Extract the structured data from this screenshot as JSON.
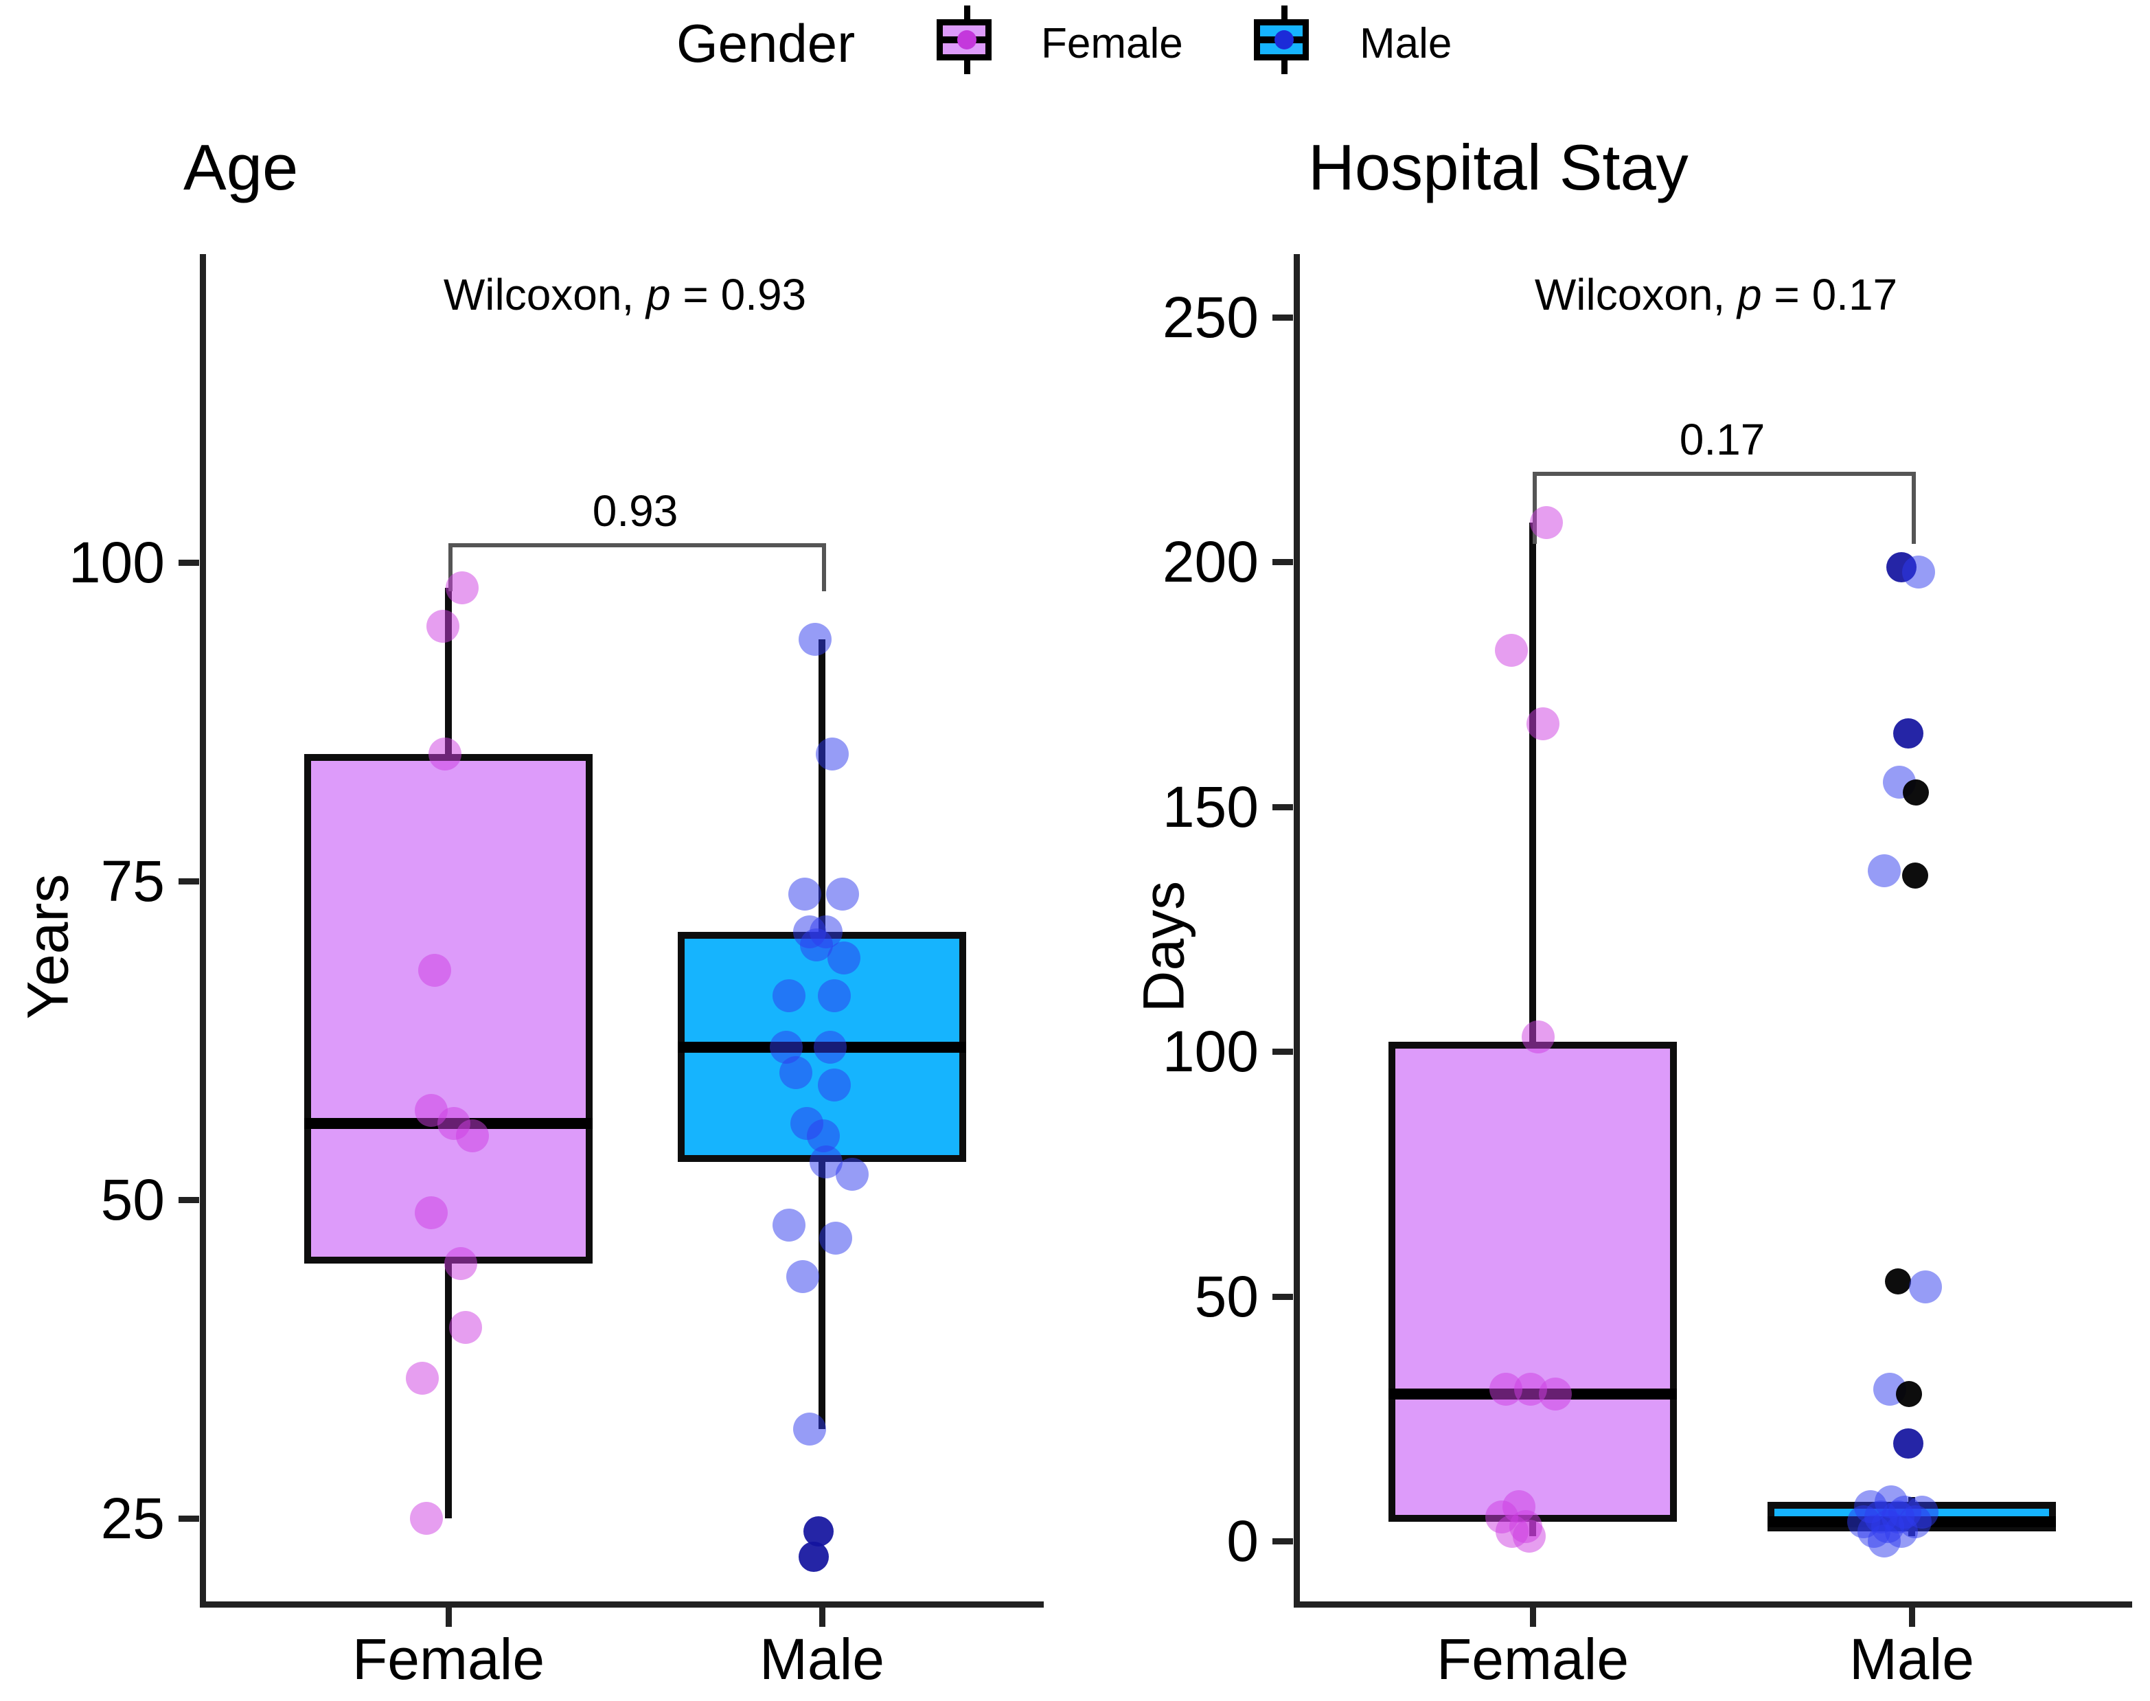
{
  "legend": {
    "title": "Gender",
    "items": [
      {
        "label": "Female",
        "fill": "#DD9BFA",
        "dot": "#C438DC"
      },
      {
        "label": "Male",
        "fill": "#16B4FE",
        "dot": "#1C2BD8"
      }
    ]
  },
  "point_colors": {
    "f": "rgba(206,62,226,0.5)",
    "m": "rgba(45,58,238,0.5)",
    "navy": "rgba(18,18,158,0.92)",
    "k": "rgba(0,0,0,0.95)"
  },
  "chart_data": [
    {
      "type": "boxplot",
      "title": "Age",
      "ylabel": "Years",
      "subtitle": {
        "stat": "Wilcoxon,",
        "p": "p",
        "eq": "= 0.93"
      },
      "categories": [
        "Female",
        "Male"
      ],
      "yticks": [
        100,
        75,
        50,
        25
      ],
      "ylim": [
        18.5,
        124.2
      ],
      "grid": false,
      "legend_position": "top",
      "bracket": {
        "label": "0.93",
        "value": 101.5,
        "drop": 70
      },
      "boxes": [
        {
          "category": "Female",
          "fill": "#DD9BFA",
          "whisker_low": 25,
          "q1": 45,
          "median": 56,
          "q3": 85,
          "whisker_high": 98
        },
        {
          "category": "Male",
          "fill": "#16B4FE",
          "whisker_low": 32,
          "q1": 53,
          "median": 62,
          "q3": 71,
          "whisker_high": 94
        }
      ],
      "points": [
        {
          "cat": 0,
          "v": 98,
          "dx": 20,
          "c": "f"
        },
        {
          "cat": 0,
          "v": 95,
          "dx": -8,
          "c": "f"
        },
        {
          "cat": 0,
          "v": 85,
          "dx": -5,
          "c": "f"
        },
        {
          "cat": 0,
          "v": 68,
          "dx": -20,
          "c": "f"
        },
        {
          "cat": 0,
          "v": 57,
          "dx": -25,
          "c": "f"
        },
        {
          "cat": 0,
          "v": 56,
          "dx": 8,
          "c": "f"
        },
        {
          "cat": 0,
          "v": 55,
          "dx": 35,
          "c": "f"
        },
        {
          "cat": 0,
          "v": 49,
          "dx": -25,
          "c": "f"
        },
        {
          "cat": 0,
          "v": 45,
          "dx": 18,
          "c": "f"
        },
        {
          "cat": 0,
          "v": 40,
          "dx": 25,
          "c": "f"
        },
        {
          "cat": 0,
          "v": 36,
          "dx": -38,
          "c": "f"
        },
        {
          "cat": 0,
          "v": 25,
          "dx": -32,
          "c": "f"
        },
        {
          "cat": 1,
          "v": 94,
          "dx": -10,
          "c": "m"
        },
        {
          "cat": 1,
          "v": 85,
          "dx": 15,
          "c": "m"
        },
        {
          "cat": 1,
          "v": 74,
          "dx": -25,
          "c": "m"
        },
        {
          "cat": 1,
          "v": 74,
          "dx": 30,
          "c": "m"
        },
        {
          "cat": 1,
          "v": 71,
          "dx": -18,
          "c": "m"
        },
        {
          "cat": 1,
          "v": 71,
          "dx": 6,
          "c": "m"
        },
        {
          "cat": 1,
          "v": 70,
          "dx": -8,
          "c": "m"
        },
        {
          "cat": 1,
          "v": 69,
          "dx": 32,
          "c": "m"
        },
        {
          "cat": 1,
          "v": 66,
          "dx": -48,
          "c": "m"
        },
        {
          "cat": 1,
          "v": 66,
          "dx": 18,
          "c": "m"
        },
        {
          "cat": 1,
          "v": 62,
          "dx": -52,
          "c": "m"
        },
        {
          "cat": 1,
          "v": 62,
          "dx": 12,
          "c": "m"
        },
        {
          "cat": 1,
          "v": 60,
          "dx": -38,
          "c": "m"
        },
        {
          "cat": 1,
          "v": 59,
          "dx": 18,
          "c": "m"
        },
        {
          "cat": 1,
          "v": 56,
          "dx": -22,
          "c": "m"
        },
        {
          "cat": 1,
          "v": 55,
          "dx": 2,
          "c": "m"
        },
        {
          "cat": 1,
          "v": 53,
          "dx": 6,
          "c": "m"
        },
        {
          "cat": 1,
          "v": 52,
          "dx": 44,
          "c": "m"
        },
        {
          "cat": 1,
          "v": 48,
          "dx": -48,
          "c": "m"
        },
        {
          "cat": 1,
          "v": 47,
          "dx": 20,
          "c": "m"
        },
        {
          "cat": 1,
          "v": 44,
          "dx": -28,
          "c": "m"
        },
        {
          "cat": 1,
          "v": 32,
          "dx": -18,
          "c": "m"
        },
        {
          "cat": 1,
          "v": 24,
          "dx": -5,
          "c": "navy"
        },
        {
          "cat": 1,
          "v": 22,
          "dx": -12,
          "c": "navy"
        }
      ]
    },
    {
      "type": "boxplot",
      "title": "Hospital Stay",
      "ylabel": "Days",
      "subtitle": {
        "stat": "Wilcoxon,",
        "p": "p",
        "eq": "= 0.17"
      },
      "categories": [
        "Female",
        "Male"
      ],
      "yticks": [
        250,
        200,
        150,
        100,
        50,
        0
      ],
      "ylim": [
        -12.3,
        262.9
      ],
      "grid": false,
      "legend_position": "top",
      "bracket": {
        "label": "0.17",
        "value": 218.5,
        "drop": 105
      },
      "boxes": [
        {
          "category": "Female",
          "fill": "#DD9BFA",
          "whisker_low": 1,
          "q1": 4,
          "median": 30,
          "q3": 102,
          "whisker_high": 208
        },
        {
          "category": "Male",
          "fill": "#16B4FE",
          "whisker_low": 1,
          "q1": 2,
          "median": 4,
          "q3": 8,
          "whisker_high": 9
        }
      ],
      "points": [
        {
          "cat": 0,
          "v": 208,
          "dx": 20,
          "c": "f"
        },
        {
          "cat": 0,
          "v": 182,
          "dx": -31,
          "c": "f"
        },
        {
          "cat": 0,
          "v": 167,
          "dx": 15,
          "c": "f"
        },
        {
          "cat": 0,
          "v": 103,
          "dx": 8,
          "c": "f"
        },
        {
          "cat": 0,
          "v": 31,
          "dx": -39,
          "c": "f"
        },
        {
          "cat": 0,
          "v": 31,
          "dx": -3,
          "c": "f"
        },
        {
          "cat": 0,
          "v": 30,
          "dx": 33,
          "c": "f"
        },
        {
          "cat": 0,
          "v": 7,
          "dx": -20,
          "c": "f"
        },
        {
          "cat": 0,
          "v": 5,
          "dx": -45,
          "c": "f"
        },
        {
          "cat": 0,
          "v": 3,
          "dx": -10,
          "c": "f"
        },
        {
          "cat": 0,
          "v": 2,
          "dx": -30,
          "c": "f"
        },
        {
          "cat": 0,
          "v": 1,
          "dx": -5,
          "c": "f"
        },
        {
          "cat": 1,
          "v": 199,
          "dx": -15,
          "c": "navy"
        },
        {
          "cat": 1,
          "v": 198,
          "dx": 10,
          "c": "m"
        },
        {
          "cat": 1,
          "v": 165,
          "dx": -5,
          "c": "navy"
        },
        {
          "cat": 1,
          "v": 155,
          "dx": -18,
          "c": "m"
        },
        {
          "cat": 1,
          "v": 153,
          "dx": 6,
          "c": "k"
        },
        {
          "cat": 1,
          "v": 137,
          "dx": -40,
          "c": "m"
        },
        {
          "cat": 1,
          "v": 136,
          "dx": 5,
          "c": "k"
        },
        {
          "cat": 1,
          "v": 53,
          "dx": -20,
          "c": "k"
        },
        {
          "cat": 1,
          "v": 52,
          "dx": 20,
          "c": "m"
        },
        {
          "cat": 1,
          "v": 31,
          "dx": -32,
          "c": "m"
        },
        {
          "cat": 1,
          "v": 30,
          "dx": -4,
          "c": "k"
        },
        {
          "cat": 1,
          "v": 20,
          "dx": -5,
          "c": "navy"
        },
        {
          "cat": 1,
          "v": 8,
          "dx": -30,
          "c": "m"
        },
        {
          "cat": 1,
          "v": 7,
          "dx": -60,
          "c": "m"
        },
        {
          "cat": 1,
          "v": 6,
          "dx": -10,
          "c": "m"
        },
        {
          "cat": 1,
          "v": 6,
          "dx": 15,
          "c": "m"
        },
        {
          "cat": 1,
          "v": 5,
          "dx": -45,
          "c": "m"
        },
        {
          "cat": 1,
          "v": 5,
          "dx": -20,
          "c": "m"
        },
        {
          "cat": 1,
          "v": 4,
          "dx": -70,
          "c": "m"
        },
        {
          "cat": 1,
          "v": 4,
          "dx": 5,
          "c": "m"
        },
        {
          "cat": 1,
          "v": 3,
          "dx": -35,
          "c": "m"
        },
        {
          "cat": 1,
          "v": 2,
          "dx": -55,
          "c": "m"
        },
        {
          "cat": 1,
          "v": 2,
          "dx": -15,
          "c": "m"
        },
        {
          "cat": 1,
          "v": 0,
          "dx": -40,
          "c": "m"
        }
      ]
    }
  ]
}
